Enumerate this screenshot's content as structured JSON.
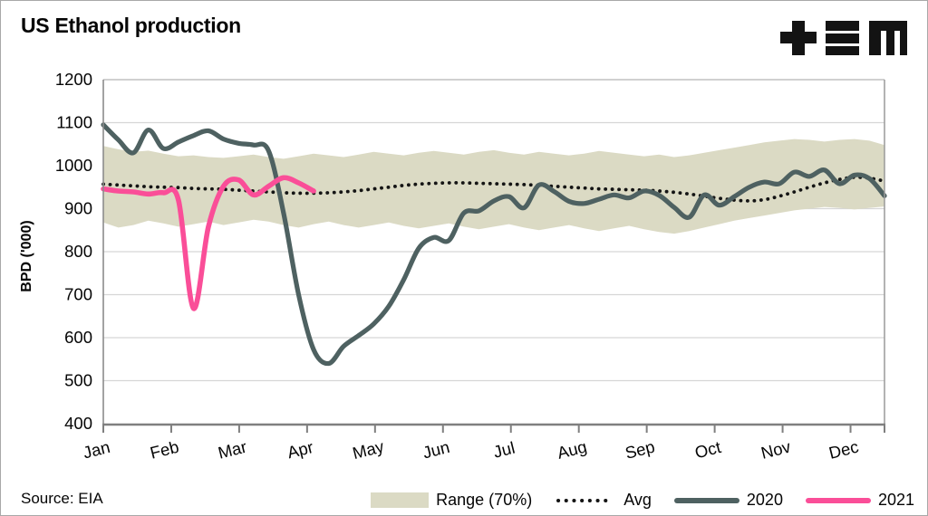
{
  "title": "US Ethanol production",
  "source": "Source: EIA",
  "logo": {
    "icon": "tem-logo"
  },
  "colors": {
    "band": "#dbdac4",
    "avg": "#141414",
    "y2020": "#4e6161",
    "y2021": "#fa4e98",
    "gridline": "#d6d6d6",
    "axis": "#8c8c8c",
    "text": "#050505"
  },
  "legend": {
    "items": [
      {
        "label": "Range (70%)",
        "marker": "band-swatch"
      },
      {
        "label": "Avg",
        "marker": "dotted-line"
      },
      {
        "label": "2020",
        "marker": "solid-line-2020"
      },
      {
        "label": "2021",
        "marker": "solid-line-2021"
      }
    ]
  },
  "chart_data": {
    "type": "line",
    "title": "US Ethanol production",
    "xlabel": "",
    "ylabel": "BPD ('000)",
    "ylim": [
      400,
      1200
    ],
    "yticks": [
      1200,
      1100,
      1000,
      900,
      800,
      700,
      600,
      500,
      400
    ],
    "categories": [
      "Jan",
      "Feb",
      "Mar",
      "Apr",
      "May",
      "Jun",
      "Jul",
      "Aug",
      "Sep",
      "Oct",
      "Nov",
      "Dec"
    ],
    "x_unit": "week-of-year",
    "grid": "horizontal",
    "legend_position": "bottom-right",
    "series": [
      {
        "name": "Range (70%)",
        "type": "band",
        "color": "#dbdac4",
        "upper": [
          1046,
          1038,
          1032,
          1035,
          1028,
          1022,
          1024,
          1020,
          1018,
          1022,
          1026,
          1020,
          1016,
          1022,
          1028,
          1024,
          1020,
          1026,
          1032,
          1028,
          1024,
          1030,
          1034,
          1030,
          1026,
          1032,
          1036,
          1030,
          1026,
          1032,
          1028,
          1024,
          1028,
          1034,
          1030,
          1026,
          1022,
          1026,
          1020,
          1024,
          1030,
          1036,
          1042,
          1048,
          1054,
          1058,
          1062,
          1060,
          1056,
          1060,
          1062,
          1058,
          1048
        ],
        "lower": [
          868,
          856,
          862,
          872,
          866,
          858,
          864,
          870,
          862,
          868,
          874,
          870,
          862,
          856,
          864,
          870,
          862,
          856,
          862,
          868,
          860,
          854,
          860,
          866,
          858,
          852,
          858,
          864,
          856,
          850,
          856,
          862,
          854,
          848,
          854,
          860,
          852,
          846,
          842,
          848,
          856,
          864,
          872,
          878,
          884,
          890,
          896,
          900,
          904,
          902,
          898,
          902,
          905
        ]
      },
      {
        "name": "Avg",
        "type": "dotted-line",
        "color": "#141414",
        "values": [
          957,
          955,
          953,
          951,
          950,
          949,
          947,
          946,
          945,
          943,
          941,
          939,
          937,
          936,
          936,
          937,
          939,
          942,
          946,
          950,
          954,
          957,
          959,
          960,
          960,
          959,
          958,
          957,
          956,
          954,
          952,
          950,
          948,
          946,
          945,
          944,
          943,
          941,
          938,
          934,
          929,
          924,
          920,
          918,
          921,
          929,
          939,
          950,
          960,
          968,
          973,
          971,
          964
        ]
      },
      {
        "name": "2020",
        "type": "line",
        "color": "#4e6161",
        "values": [
          1095,
          1060,
          1030,
          1083,
          1040,
          1055,
          1070,
          1081,
          1062,
          1052,
          1048,
          1035,
          890,
          700,
          572,
          540,
          580,
          605,
          632,
          673,
          735,
          808,
          833,
          826,
          890,
          895,
          918,
          928,
          902,
          955,
          940,
          917,
          912,
          922,
          932,
          925,
          941,
          931,
          903,
          880,
          932,
          908,
          928,
          950,
          962,
          958,
          985,
          975,
          990,
          958,
          978,
          970,
          930
        ]
      },
      {
        "name": "2021",
        "type": "line",
        "color": "#fa4e98",
        "values": [
          946,
          941,
          939,
          934,
          937,
          920,
          668,
          858,
          952,
          967,
          932,
          952,
          972,
          960,
          941
        ]
      }
    ]
  }
}
